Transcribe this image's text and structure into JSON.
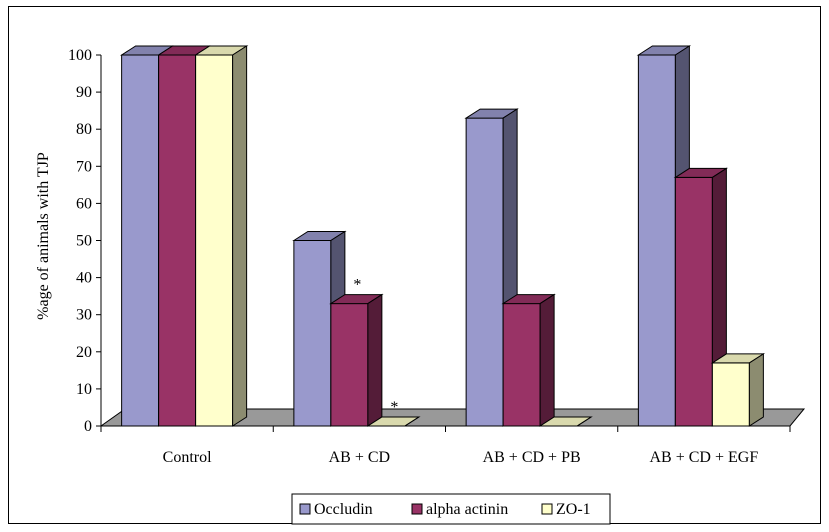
{
  "chart_data": {
    "type": "bar",
    "style": "3d-clustered-column",
    "title": "",
    "xlabel": "",
    "ylabel": "%age of animals with TJP",
    "ylim": [
      0,
      100
    ],
    "yticks": [
      "0",
      "10",
      "20",
      "30",
      "40",
      "50",
      "60",
      "70",
      "80",
      "90",
      "100"
    ],
    "grid": false,
    "legend_position": "bottom",
    "categories": [
      "Control",
      "AB + CD",
      "AB + CD + PB",
      "AB + CD + EGF"
    ],
    "series": [
      {
        "name": "Occludin",
        "values": [
          100,
          50,
          83,
          100
        ],
        "color": "#9999cc"
      },
      {
        "name": "alpha actinin",
        "values": [
          100,
          33,
          33,
          67
        ],
        "color": "#993366"
      },
      {
        "name": "ZO-1",
        "values": [
          100,
          0,
          0,
          17
        ],
        "color": "#ffffcc"
      }
    ],
    "annotations": [
      {
        "text": "*",
        "category": "AB + CD",
        "series": "alpha actinin"
      },
      {
        "text": "*",
        "category": "AB + CD",
        "series": "ZO-1"
      }
    ],
    "floor_color": "#999999"
  }
}
